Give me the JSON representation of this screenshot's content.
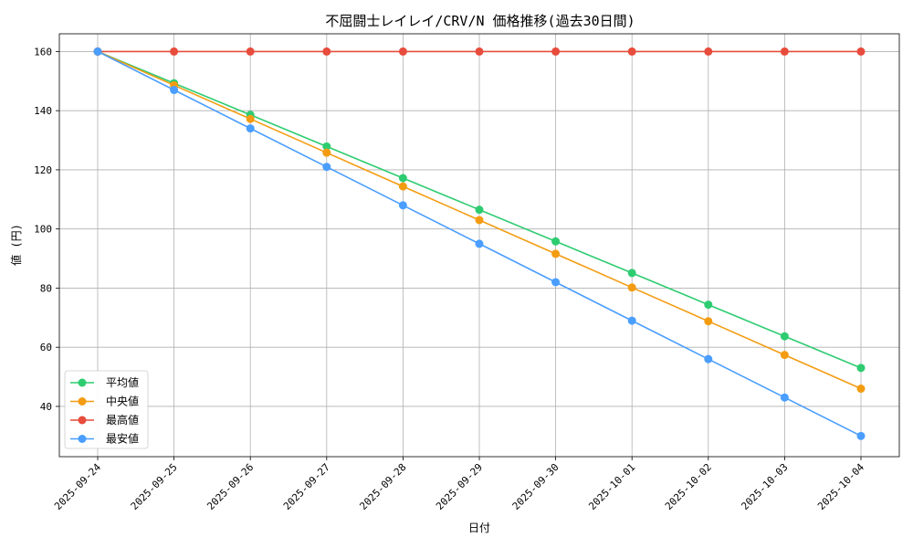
{
  "chart_data": {
    "type": "line",
    "title": "不屈闘士レイレイ/CRV/N 価格推移(過去30日間)",
    "xlabel": "日付",
    "ylabel": "値 (円)",
    "categories": [
      "2025-09-24",
      "2025-09-25",
      "2025-09-26",
      "2025-09-27",
      "2025-09-28",
      "2025-09-29",
      "2025-09-30",
      "2025-10-01",
      "2025-10-02",
      "2025-10-03",
      "2025-10-04"
    ],
    "ylim": [
      23,
      166
    ],
    "yticks": [
      40,
      60,
      80,
      100,
      120,
      140,
      160
    ],
    "grid": true,
    "legend_position": "lower-left",
    "series": [
      {
        "name": "平均値",
        "color": "#2ecc71",
        "values": [
          160,
          149.3,
          138.6,
          127.9,
          117.2,
          106.5,
          95.8,
          85.1,
          74.4,
          63.7,
          53
        ]
      },
      {
        "name": "中央値",
        "color": "#f39c12",
        "values": [
          160,
          148.6,
          137.2,
          125.8,
          114.4,
          103,
          91.6,
          80.2,
          68.8,
          57.4,
          46
        ]
      },
      {
        "name": "最高値",
        "color": "#e74c3c",
        "values": [
          160,
          160,
          160,
          160,
          160,
          160,
          160,
          160,
          160,
          160,
          160
        ]
      },
      {
        "name": "最安値",
        "color": "#4a9eff",
        "values": [
          160,
          147,
          134,
          121,
          108,
          95,
          82,
          69,
          56,
          43,
          30
        ]
      }
    ]
  }
}
